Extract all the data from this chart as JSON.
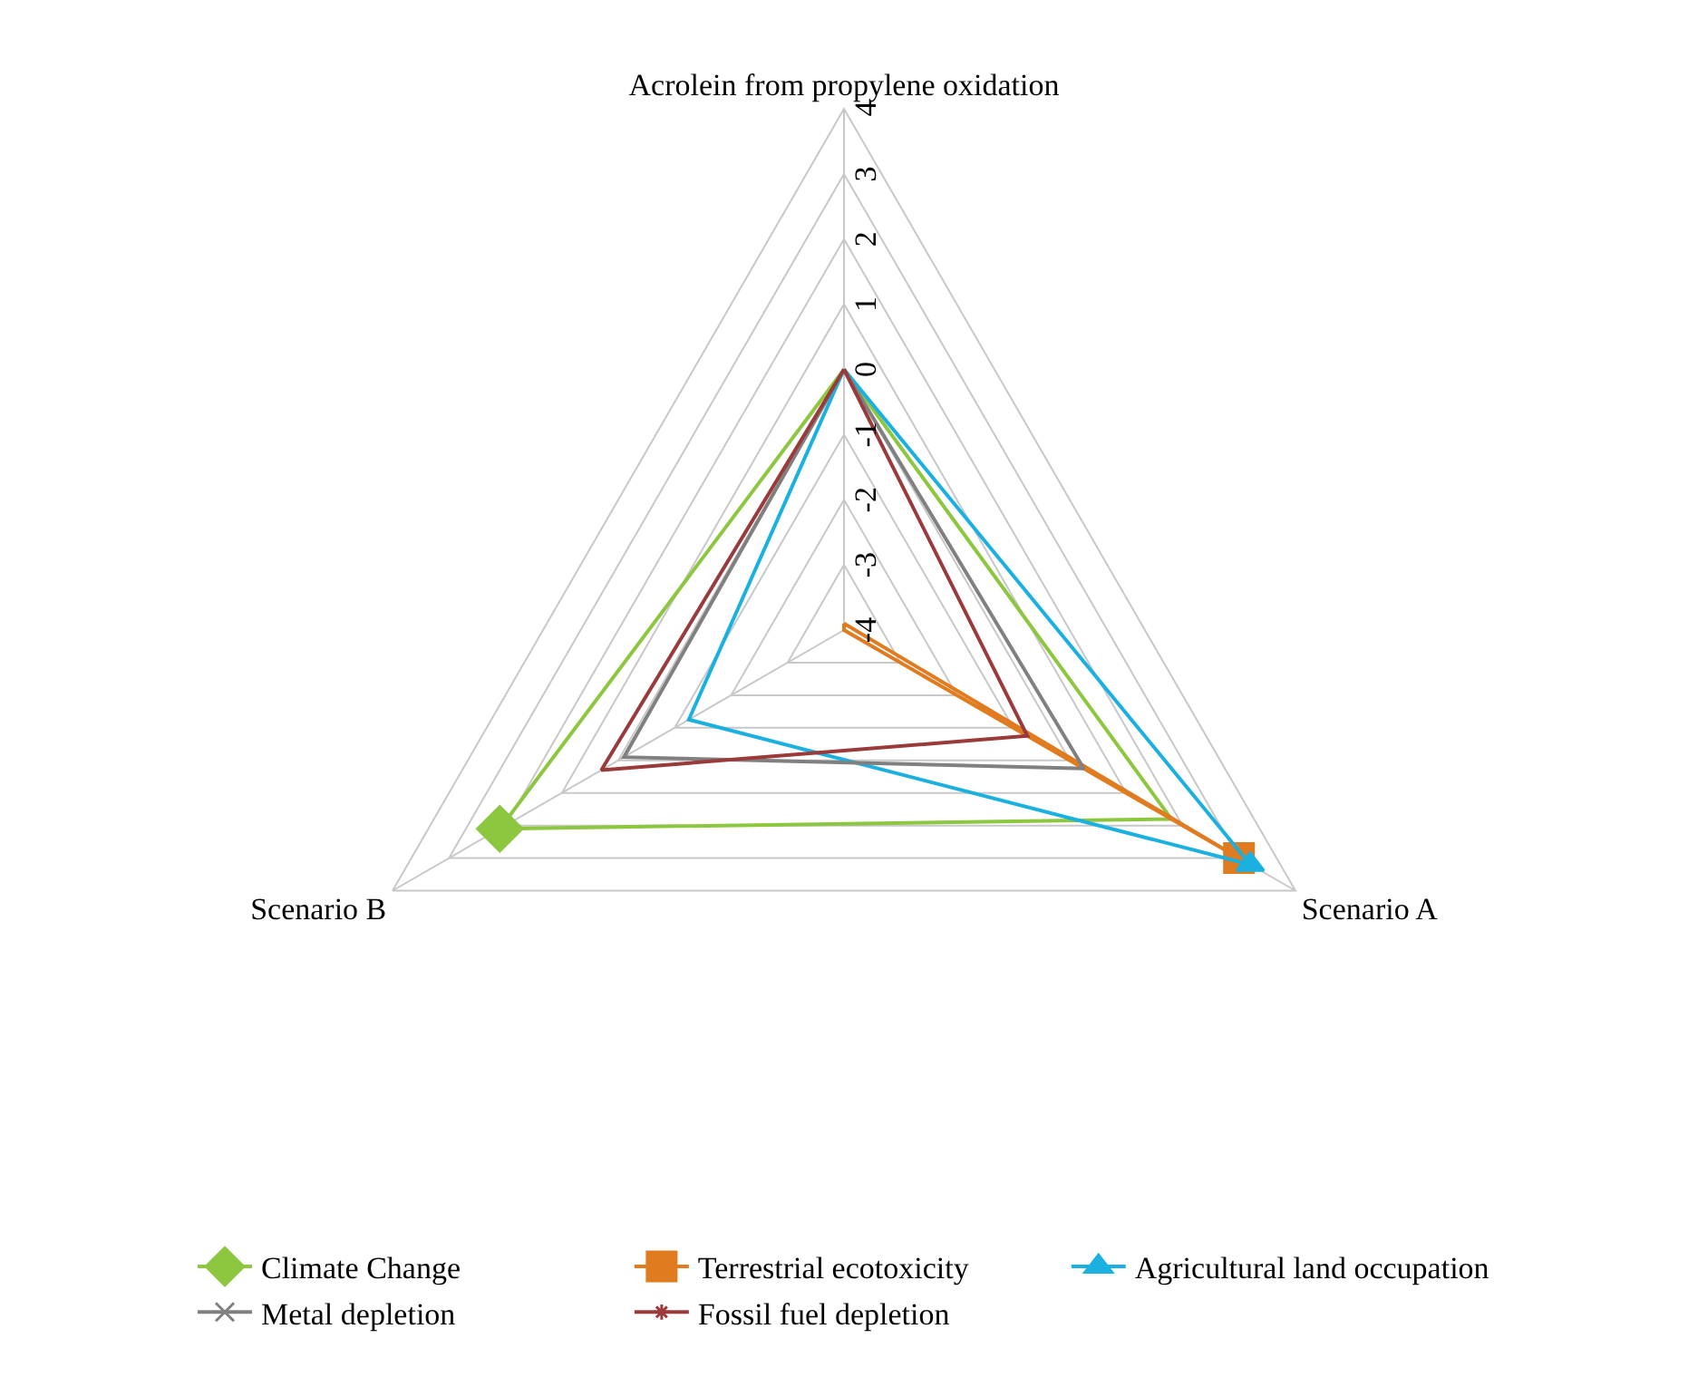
{
  "chart_data": {
    "type": "radar",
    "categories": [
      "Acrolein from propylene oxidation",
      "Scenario A",
      "Scenario B"
    ],
    "ylim": [
      -4,
      4
    ],
    "yticks": [
      -4,
      -3,
      -2,
      -1,
      0,
      1,
      2,
      3,
      4
    ],
    "grid": true,
    "legend": "bottom",
    "line_style": "solid",
    "series": [
      {
        "name": "Climate Change",
        "color": "#8dc63f",
        "marker": "diamond",
        "values": [
          0,
          1.8,
          2.1
        ]
      },
      {
        "name": "Terrestrial ecotoxicity",
        "color": "#e07b20",
        "marker": "square",
        "values": [
          -3.9,
          3.0,
          -4
        ]
      },
      {
        "name": "Agricultural land occupation",
        "color": "#1ab0e0",
        "marker": "triangle",
        "values": [
          0,
          3.2,
          -1.25
        ]
      },
      {
        "name": "Metal depletion",
        "color": "#808080",
        "marker": "cross",
        "values": [
          0,
          0.25,
          -0.1
        ]
      },
      {
        "name": "Fossil fuel depletion",
        "color": "#9b3a3a",
        "marker": "star",
        "values": [
          0,
          -0.75,
          0.3
        ]
      }
    ]
  }
}
